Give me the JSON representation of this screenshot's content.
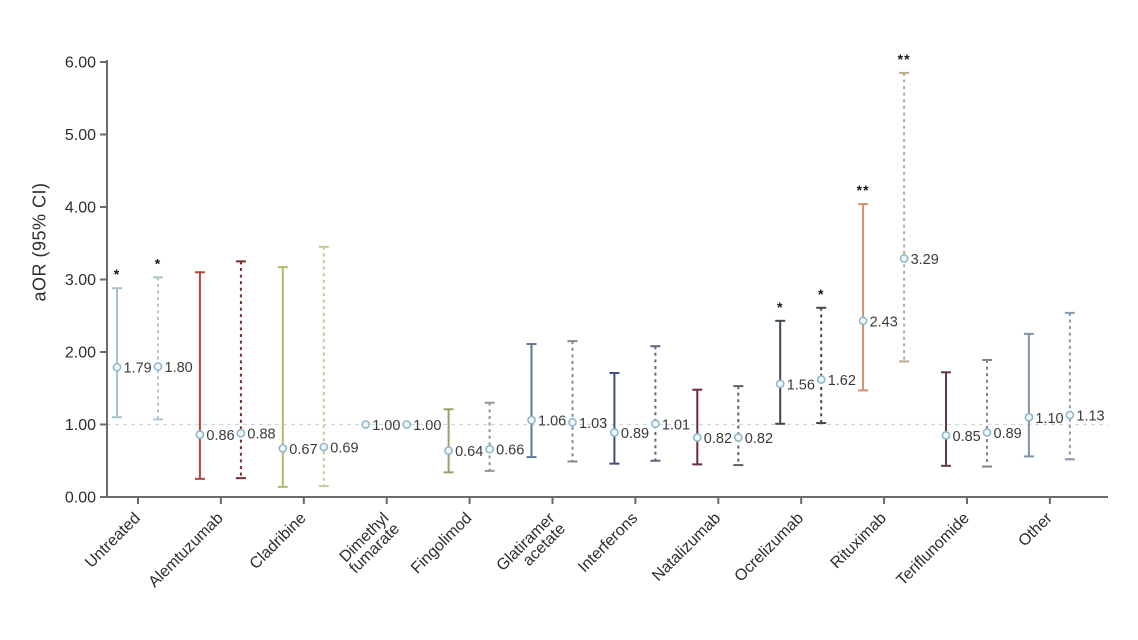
{
  "chart_data": {
    "type": "scatter",
    "subtype": "forest-errorbar",
    "title": "",
    "xlabel": "",
    "ylabel": "aOR (95% CI)",
    "ylim": [
      0,
      6
    ],
    "y_ticks": [
      0,
      1,
      2,
      3,
      4,
      5,
      6
    ],
    "y_tick_labels": [
      "0.00",
      "1.00",
      "2.00",
      "3.00",
      "4.00",
      "5.00",
      "6.00"
    ],
    "reference_line_y": 1.0,
    "grid": false,
    "legend_position": "none",
    "marker": {
      "shape": "open-circle",
      "stroke": "#8fb9cb",
      "fill": "#f2f8fa"
    },
    "categories": [
      {
        "label": "Untreated",
        "lines": [
          "Untreated"
        ]
      },
      {
        "label": "Alemtuzumab",
        "lines": [
          "Alemtuzumab"
        ]
      },
      {
        "label": "Cladribine",
        "lines": [
          "Cladribine"
        ]
      },
      {
        "label": "Dimethyl fumarate",
        "lines": [
          "Dimethyl",
          "fumarate"
        ]
      },
      {
        "label": "Fingolimod",
        "lines": [
          "Fingolimod"
        ]
      },
      {
        "label": "Glatiramer acetate",
        "lines": [
          "Glatiramer",
          "acetate"
        ]
      },
      {
        "label": "Interferons",
        "lines": [
          "Interferons"
        ]
      },
      {
        "label": "Natalizumab",
        "lines": [
          "Natalizumab"
        ]
      },
      {
        "label": "Ocrelizumab",
        "lines": [
          "Ocrelizumab"
        ]
      },
      {
        "label": "Rituximab",
        "lines": [
          "Rituximab"
        ]
      },
      {
        "label": "Teriflunomide",
        "lines": [
          "Teriflunomide"
        ]
      },
      {
        "label": "Other",
        "lines": [
          "Other"
        ]
      }
    ],
    "series": [
      {
        "name": "estimate-solid",
        "line_style": "solid",
        "values": [
          {
            "category": "Untreated",
            "or": 1.79,
            "label": "1.79",
            "ci_low": 1.1,
            "ci_high": 2.88,
            "sig": "*",
            "color": "#a5c2ce"
          },
          {
            "category": "Alemtuzumab",
            "or": 0.86,
            "label": "0.86",
            "ci_low": 0.25,
            "ci_high": 3.1,
            "sig": "",
            "color": "#b2453c"
          },
          {
            "category": "Cladribine",
            "or": 0.67,
            "label": "0.67",
            "ci_low": 0.14,
            "ci_high": 3.17,
            "sig": "",
            "color": "#b6ba6a"
          },
          {
            "category": "Dimethyl fumarate",
            "or": 1.0,
            "label": "1.00",
            "ci_low": null,
            "ci_high": null,
            "sig": "",
            "color": "#8fb9cb"
          },
          {
            "category": "Fingolimod",
            "or": 0.64,
            "label": "0.64",
            "ci_low": 0.34,
            "ci_high": 1.21,
            "sig": "",
            "color": "#9aa06d"
          },
          {
            "category": "Glatiramer acetate",
            "or": 1.06,
            "label": "1.06",
            "ci_low": 0.55,
            "ci_high": 2.11,
            "sig": "",
            "color": "#5f7799"
          },
          {
            "category": "Interferons",
            "or": 0.89,
            "label": "0.89",
            "ci_low": 0.46,
            "ci_high": 1.71,
            "sig": "",
            "color": "#40507a"
          },
          {
            "category": "Natalizumab",
            "or": 0.82,
            "label": "0.82",
            "ci_low": 0.45,
            "ci_high": 1.48,
            "sig": "",
            "color": "#6e2b3c"
          },
          {
            "category": "Ocrelizumab",
            "or": 1.56,
            "label": "1.56",
            "ci_low": 1.01,
            "ci_high": 2.43,
            "sig": "*",
            "color": "#3d474f"
          },
          {
            "category": "Rituximab",
            "or": 2.43,
            "label": "2.43",
            "ci_low": 1.47,
            "ci_high": 4.04,
            "sig": "**",
            "color": "#cd9070"
          },
          {
            "category": "Teriflunomide",
            "or": 0.85,
            "label": "0.85",
            "ci_low": 0.43,
            "ci_high": 1.72,
            "sig": "",
            "color": "#643a44"
          },
          {
            "category": "Other",
            "or": 1.1,
            "label": "1.10",
            "ci_low": 0.56,
            "ci_high": 2.25,
            "sig": "",
            "color": "#7e95a5"
          }
        ]
      },
      {
        "name": "estimate-dashed",
        "line_style": "dashed",
        "values": [
          {
            "category": "Untreated",
            "or": 1.8,
            "label": "1.80",
            "ci_low": 1.07,
            "ci_high": 3.03,
            "sig": "*",
            "color": "#afc7d1"
          },
          {
            "category": "Alemtuzumab",
            "or": 0.88,
            "label": "0.88",
            "ci_low": 0.26,
            "ci_high": 3.25,
            "sig": "",
            "color": "#7c2b28"
          },
          {
            "category": "Cladribine",
            "or": 0.69,
            "label": "0.69",
            "ci_low": 0.15,
            "ci_high": 3.45,
            "sig": "",
            "color": "#c9c791"
          },
          {
            "category": "Dimethyl fumarate",
            "or": 1.0,
            "label": "1.00",
            "ci_low": null,
            "ci_high": null,
            "sig": "",
            "color": "#8fb9cb"
          },
          {
            "category": "Fingolimod",
            "or": 0.66,
            "label": "0.66",
            "ci_low": 0.36,
            "ci_high": 1.3,
            "sig": "",
            "color": "#8d9997"
          },
          {
            "category": "Glatiramer acetate",
            "or": 1.03,
            "label": "1.03",
            "ci_low": 0.49,
            "ci_high": 2.15,
            "sig": "",
            "color": "#808b95"
          },
          {
            "category": "Interferons",
            "or": 1.01,
            "label": "1.01",
            "ci_low": 0.5,
            "ci_high": 2.08,
            "sig": "",
            "color": "#5a6880"
          },
          {
            "category": "Natalizumab",
            "or": 0.82,
            "label": "0.82",
            "ci_low": 0.44,
            "ci_high": 1.53,
            "sig": "",
            "color": "#6a5a62"
          },
          {
            "category": "Ocrelizumab",
            "or": 1.62,
            "label": "1.62",
            "ci_low": 1.02,
            "ci_high": 2.61,
            "sig": "*",
            "color": "#47474a"
          },
          {
            "category": "Rituximab",
            "or": 3.29,
            "label": "3.29",
            "ci_low": 1.87,
            "ci_high": 5.85,
            "sig": "**",
            "color": "#bca88c"
          },
          {
            "category": "Teriflunomide",
            "or": 0.89,
            "label": "0.89",
            "ci_low": 0.42,
            "ci_high": 1.89,
            "sig": "",
            "color": "#8d8176"
          },
          {
            "category": "Other",
            "or": 1.13,
            "label": "1.13",
            "ci_low": 0.52,
            "ci_high": 2.54,
            "sig": "",
            "color": "#8a9aad"
          }
        ]
      }
    ]
  },
  "colors": {
    "axis": "#6b6b6b",
    "reference_line": "#ccd9dd",
    "value_text": "#3a3a3a",
    "tick_text": "#2d2d2d"
  }
}
